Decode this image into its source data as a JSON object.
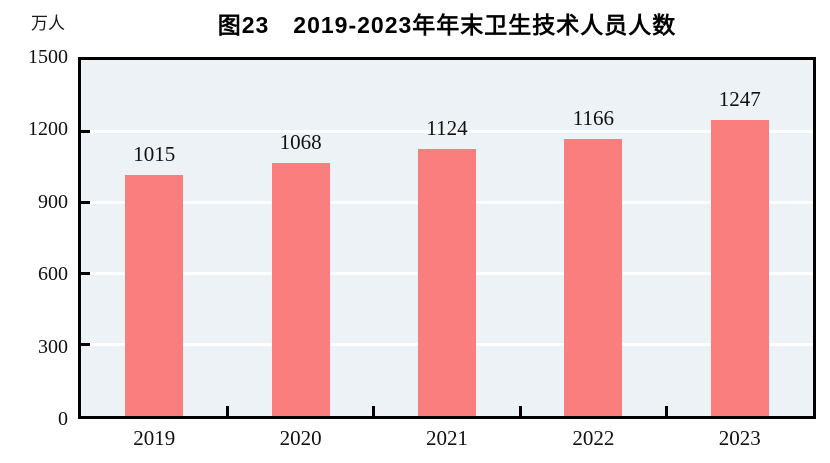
{
  "chart_data": {
    "type": "bar",
    "title": "图23　2019-2023年年末卫生技术人员人数",
    "unit_label": "万人",
    "categories": [
      "2019",
      "2020",
      "2021",
      "2022",
      "2023"
    ],
    "values": [
      1015,
      1068,
      1124,
      1166,
      1247
    ],
    "xlabel": "",
    "ylabel": "万人",
    "ylim": [
      0,
      1500
    ],
    "yticks": [
      0,
      300,
      600,
      900,
      1200,
      1500
    ],
    "grid": "on",
    "legend": "none",
    "bar_color": "#FB7E7E",
    "plot_bg_color": "#ECF2F6",
    "grid_color": "#FFFFFF",
    "axis_color": "#000000",
    "text_color": "#111111"
  }
}
